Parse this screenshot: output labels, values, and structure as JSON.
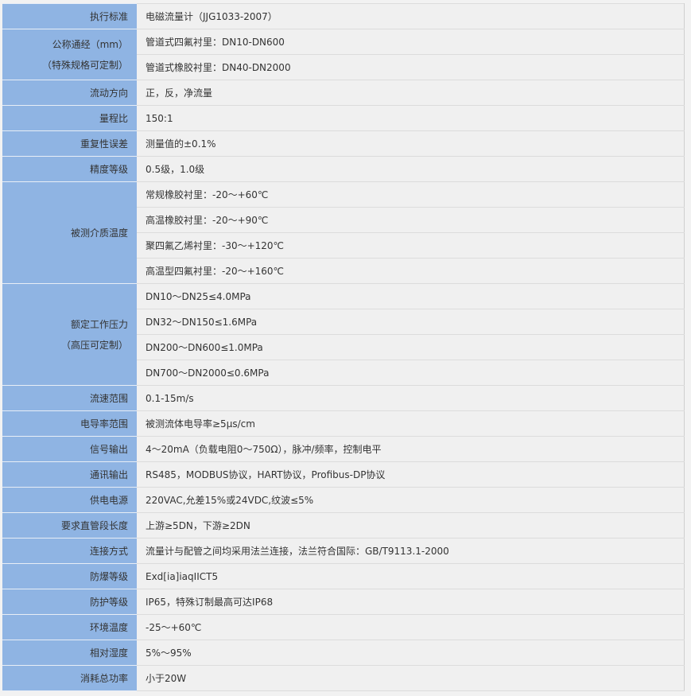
{
  "colors": {
    "label_bg": "#8fb4e3",
    "value_bg": "#f0f0f0"
  },
  "rows": [
    {
      "label": [
        "执行标准"
      ],
      "values": [
        "电磁流量计（JJG1033-2007）"
      ]
    },
    {
      "label": [
        "公称通经（mm）",
        "（特殊规格可定制）"
      ],
      "values": [
        "管道式四氟衬里：DN10-DN600",
        "管道式橡胶衬里：DN40-DN2000"
      ]
    },
    {
      "label": [
        "流动方向"
      ],
      "values": [
        "正，反，净流量"
      ]
    },
    {
      "label": [
        "量程比"
      ],
      "values": [
        "150:1"
      ]
    },
    {
      "label": [
        "重复性误差"
      ],
      "values": [
        "测量值的±0.1%"
      ]
    },
    {
      "label": [
        "精度等级"
      ],
      "values": [
        "0.5级，1.0级"
      ]
    },
    {
      "label": [
        "被测介质温度"
      ],
      "values": [
        "常规橡胶衬里：-20～+60℃",
        "高温橡胶衬里：-20～+90℃",
        "聚四氟乙烯衬里：-30～+120℃",
        "高温型四氟衬里：-20～+160℃"
      ]
    },
    {
      "label": [
        "额定工作压力",
        "（高压可定制）"
      ],
      "values": [
        "DN10～DN25≤4.0MPa",
        "DN32～DN150≤1.6MPa",
        "DN200～DN600≤1.0MPa",
        "DN700～DN2000≤0.6MPa"
      ]
    },
    {
      "label": [
        "流速范围"
      ],
      "values": [
        "0.1-15m/s"
      ]
    },
    {
      "label": [
        "电导率范围"
      ],
      "values": [
        "被测流体电导率≥5μs/cm"
      ]
    },
    {
      "label": [
        "信号输出"
      ],
      "values": [
        "4～20mA（负载电阻0～750Ω），脉冲/频率，控制电平"
      ]
    },
    {
      "label": [
        "通讯输出"
      ],
      "values": [
        "RS485，MODBUS协议，HART协议，Profibus-DP协议"
      ]
    },
    {
      "label": [
        "供电电源"
      ],
      "values": [
        "220VAC,允差15%或24VDC,纹波≤5%"
      ]
    },
    {
      "label": [
        "要求直管段长度"
      ],
      "values": [
        "上游≥5DN，下游≥2DN"
      ]
    },
    {
      "label": [
        "连接方式"
      ],
      "values": [
        "流量计与配管之间均采用法兰连接，法兰符合国际：GB/T9113.1-2000"
      ]
    },
    {
      "label": [
        "防爆等级"
      ],
      "values": [
        "Exd[ia]iaqIICT5"
      ]
    },
    {
      "label": [
        "防护等级"
      ],
      "values": [
        "IP65，特殊订制最高可达IP68"
      ]
    },
    {
      "label": [
        "环境温度"
      ],
      "values": [
        "-25～+60℃"
      ]
    },
    {
      "label": [
        "相对湿度"
      ],
      "values": [
        "5%～95%"
      ]
    },
    {
      "label": [
        "消耗总功率"
      ],
      "values": [
        "小于20W"
      ]
    }
  ]
}
